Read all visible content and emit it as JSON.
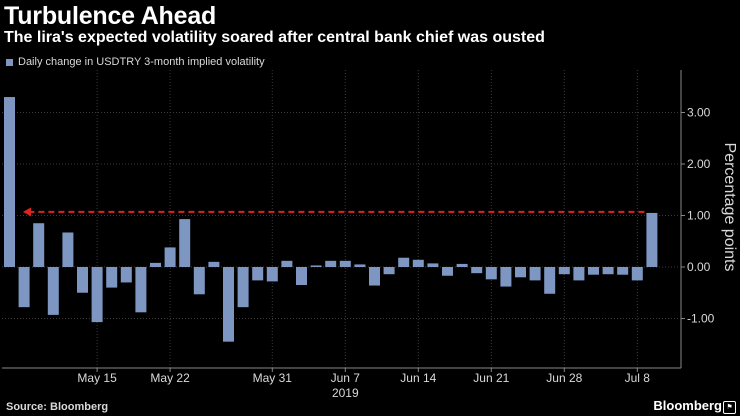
{
  "header": {
    "title": "Turbulence Ahead",
    "subtitle": "The lira's expected volatility soared after central bank chief was ousted"
  },
  "footer": {
    "source": "Source: Bloomberg",
    "brand": "Bloomberg"
  },
  "colors": {
    "bar": "#7d96c2",
    "arrow": "#e0231c",
    "grid": "#3a3a3a",
    "background": "#000000"
  },
  "chart_data": {
    "type": "bar",
    "series": [
      {
        "name": "Daily change in USDTRY 3-month implied volatility",
        "values": [
          3.3,
          -0.78,
          0.85,
          -0.93,
          0.67,
          -0.5,
          -1.07,
          -0.4,
          -0.3,
          -0.88,
          0.08,
          0.38,
          0.93,
          -0.53,
          0.1,
          -1.45,
          -0.78,
          -0.26,
          -0.28,
          0.12,
          -0.35,
          0.03,
          0.12,
          0.12,
          0.05,
          -0.36,
          -0.14,
          0.18,
          0.14,
          0.07,
          -0.17,
          0.06,
          -0.12,
          -0.24,
          -0.38,
          -0.2,
          -0.26,
          -0.52,
          -0.14,
          -0.26,
          -0.15,
          -0.14,
          -0.15,
          -0.26,
          1.05
        ]
      }
    ],
    "x_tick_labels": [
      "May 15",
      "May 22",
      "May 31",
      "Jun 7",
      "Jun 14",
      "Jun 21",
      "Jun 28",
      "Jul 8"
    ],
    "x_tick_positions": [
      6,
      11,
      18,
      23,
      28,
      33,
      38,
      43
    ],
    "year_label": "2019",
    "y_tick_labels": [
      "3.00",
      "2.00",
      "1.00",
      "0.00",
      "-1.00"
    ],
    "y_ticks": [
      3,
      2,
      1,
      0,
      -1
    ],
    "ylabel": "Percentage points",
    "ylim": [
      -2.0,
      3.7
    ],
    "grid": true,
    "annotation": "dashed red arrow from the last value (1.05) back to the first bar",
    "annotation_value": 1.07
  }
}
